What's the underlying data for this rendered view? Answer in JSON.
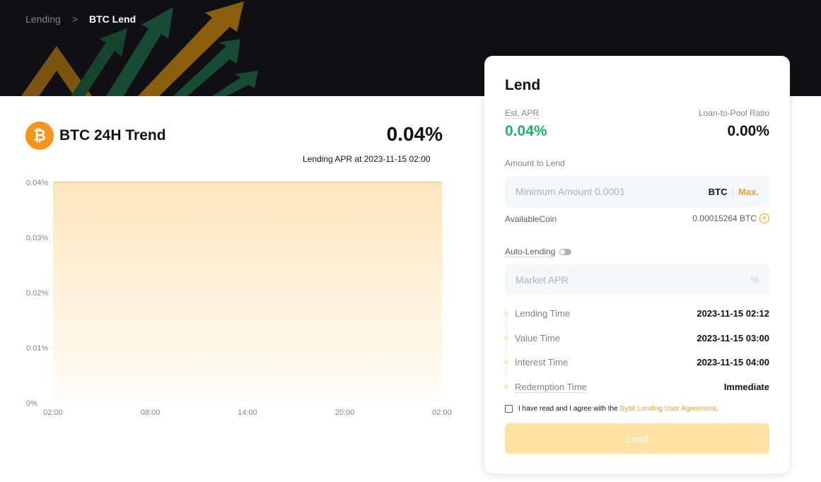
{
  "breadcrumb": {
    "parent": "Lending",
    "separator": ">",
    "current": "BTC Lend"
  },
  "trend": {
    "coin_symbol": "₿",
    "title": "BTC 24H Trend",
    "apr": "0.04%",
    "subtitle": "Lending APR at 2023-11-15 02:00"
  },
  "chart_data": {
    "type": "area",
    "x": [
      "02:00",
      "08:00",
      "14:00",
      "20:00",
      "02:00"
    ],
    "values": [
      0.04,
      0.04,
      0.04,
      0.04,
      0.04
    ],
    "y_ticks": [
      "0%",
      "0.01%",
      "0.02%",
      "0.03%",
      "0.04%"
    ],
    "ylim": [
      0,
      0.04
    ],
    "grid": false,
    "color": "#f7a600"
  },
  "lend": {
    "title": "Lend",
    "est_apr_label": "Est. APR",
    "est_apr": "0.04%",
    "ratio_label": "Loan-to-Pool Ratio",
    "ratio": "0.00%",
    "amount_label": "Amount to Lend",
    "amount_placeholder": "Minimum Amount 0.0001",
    "currency": "BTC",
    "max": "Max.",
    "available_label": "AvailableCoin",
    "available": "0.00015264 BTC",
    "auto_label": "Auto-Lending",
    "auto_enabled": false,
    "market_apr_placeholder": "Market APR",
    "percent": "%",
    "times": [
      {
        "k": "Lending Time",
        "v": "2023-11-15 02:12"
      },
      {
        "k": "Value Time",
        "v": "2023-11-15 03:00"
      },
      {
        "k": "Interest Time",
        "v": "2023-11-15 04:00"
      },
      {
        "k": "Redemption Time",
        "v": "Immediate"
      }
    ],
    "agree_text": "I have read and I agree with the ",
    "agree_link": "Bybit Lending User Agreement",
    "agree_end": ".",
    "button": "Lend"
  },
  "colors": {
    "accent": "#f7a600",
    "green": "#20b26c"
  }
}
